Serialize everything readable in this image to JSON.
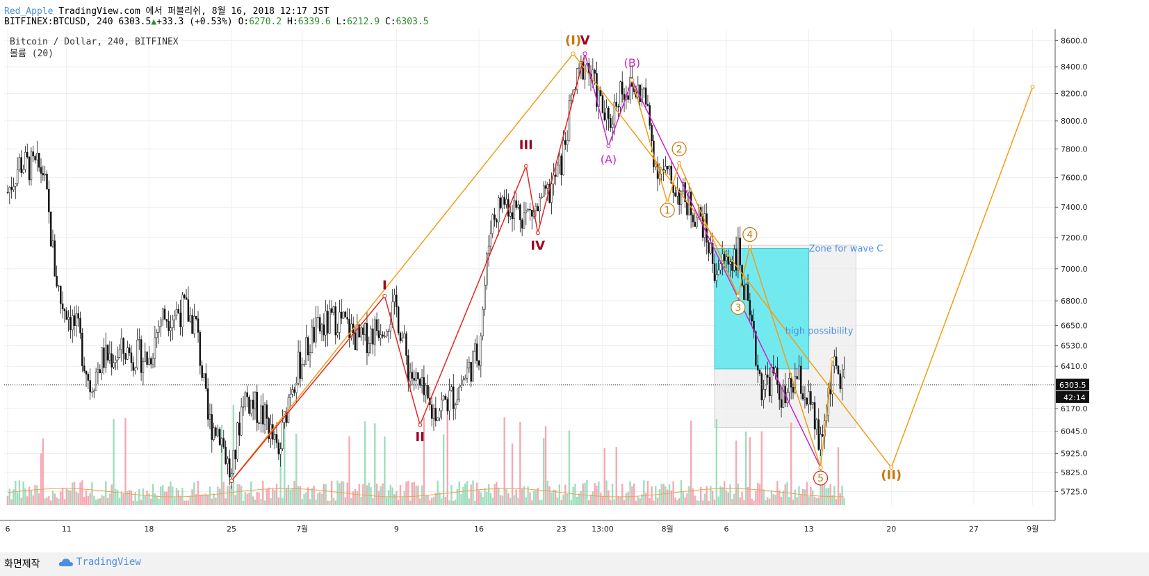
{
  "header": {
    "author": "Red_Apple",
    "published": "TradingView.com 에서 퍼블리쉬, 8월 16, 2018 12:17 JST",
    "symbol": "BITFINEX:BTCUSD, 240",
    "last": "6303.5",
    "change": "+33.3 (+0.53%)",
    "o_label": "O:",
    "o_val": "6270.2",
    "h_label": "H:",
    "h_val": "6339.6",
    "l_label": "L:",
    "l_val": "6212.9",
    "c_label": "C:",
    "c_val": "6303.5"
  },
  "chart_legend": {
    "title": "Bitcoin / Dollar, 240, BITFINEX",
    "indicator": "볼륨 (20)"
  },
  "price_tag": {
    "price": "6303.5",
    "countdown": "42:14"
  },
  "footer": {
    "made_with": "화면제작",
    "brand": "TradingView"
  },
  "colors": {
    "up": "#2e8b2e",
    "down": "#000000",
    "orange": "#f39c12",
    "red": "#e8231c",
    "magenta": "#cc22cc",
    "cyan": "#5ce8ee",
    "zone": "#ebebeb",
    "label_blue": "#4a90e2",
    "dark_red": "#a0001e",
    "wave_orange": "#c8760a"
  },
  "chart_data": {
    "type": "candlestick",
    "title": "Bitcoin / Dollar, 240, BITFINEX",
    "y_axis_ticks": [
      "8600.0",
      "8400.0",
      "8200.0",
      "8000.0",
      "7800.0",
      "7600.0",
      "7400.0",
      "7200.0",
      "7000.0",
      "6800.0",
      "6650.0",
      "6530.0",
      "6410.0",
      "6170.0",
      "6045.0",
      "5925.0",
      "5825.0",
      "5725.0"
    ],
    "x_axis_ticks": [
      "6",
      "11",
      "18",
      "25",
      "7월",
      "9",
      "16",
      "23",
      "13:00",
      "8월",
      "6",
      "13",
      "20",
      "27",
      "9월"
    ],
    "ylim": [
      5655,
      8690
    ],
    "log_scale": true,
    "price_path": [
      [
        "6/6",
        7500
      ],
      [
        "6/7",
        7700
      ],
      [
        "6/9",
        7650
      ],
      [
        "6/10",
        7000
      ],
      [
        "6/10 late",
        6800
      ],
      [
        "6/11",
        6750
      ],
      [
        "6/12",
        6600
      ],
      [
        "6/13",
        6300
      ],
      [
        "6/14",
        6450
      ],
      [
        "6/16",
        6500
      ],
      [
        "6/18",
        6450
      ],
      [
        "6/19",
        6700
      ],
      [
        "6/21",
        6750
      ],
      [
        "6/22",
        6650
      ],
      [
        "6/23",
        6100
      ],
      [
        "6/24",
        6050
      ],
      [
        "6/25",
        5780
      ],
      [
        "6/26",
        6250
      ],
      [
        "6/28",
        6100
      ],
      [
        "6/29",
        5900
      ],
      [
        "6/30",
        6300
      ],
      [
        "7/2",
        6600
      ],
      [
        "7/4",
        6700
      ],
      [
        "7/6",
        6550
      ],
      [
        "7/9",
        6750
      ],
      [
        "7/10",
        6400
      ],
      [
        "7/12",
        6150
      ],
      [
        "7/14",
        6250
      ],
      [
        "7/16",
        6500
      ],
      [
        "7/17",
        7300
      ],
      [
        "7/18",
        7450
      ],
      [
        "7/20",
        7350
      ],
      [
        "7/21",
        7380
      ],
      [
        "7/22",
        7500
      ],
      [
        "7/23",
        7700
      ],
      [
        "7/24",
        8200
      ],
      [
        "7/25",
        8450
      ],
      [
        "7/26",
        8200
      ],
      [
        "7/27",
        7950
      ],
      [
        "7/28",
        8250
      ],
      [
        "7/30",
        8200
      ],
      [
        "7/31",
        7700
      ],
      [
        "8/1",
        7600
      ],
      [
        "8/2",
        7500
      ],
      [
        "8/3",
        7400
      ],
      [
        "8/4",
        7300
      ],
      [
        "8/5",
        7000
      ],
      [
        "8/6",
        7050
      ],
      [
        "8/7",
        7100
      ],
      [
        "8/8",
        6650
      ],
      [
        "8/9",
        6300
      ],
      [
        "8/10",
        6350
      ],
      [
        "8/11",
        6200
      ],
      [
        "8/12",
        6350
      ],
      [
        "8/13",
        6200
      ],
      [
        "8/14",
        5950
      ],
      [
        "8/15",
        6400
      ],
      [
        "8/16",
        6303.5
      ]
    ],
    "series": [
      {
        "name": "",
        "kind": "primary-wave",
        "points": [
          [
            "6/25",
            5780
          ],
          [
            "7/24",
            8500
          ],
          [
            "8/20",
            5850
          ],
          [
            "9/1",
            8250
          ]
        ]
      },
      {
        "name": "",
        "kind": "impulse",
        "points": [
          [
            "6/25",
            5780
          ],
          [
            "7/8",
            6830
          ],
          [
            "7/11",
            6080
          ],
          [
            "7/20",
            7680
          ],
          [
            "7/21",
            7230
          ],
          [
            "7/25",
            8500
          ]
        ]
      },
      {
        "name": "",
        "kind": "abc",
        "points": [
          [
            "7/25",
            8500
          ],
          [
            "7/27",
            7820
          ],
          [
            "7/29",
            8300
          ],
          [
            "8/14",
            5850
          ]
        ]
      },
      {
        "name": "",
        "kind": "sub-wave",
        "points": [
          [
            "7/29",
            8300
          ],
          [
            "8/1",
            7430
          ],
          [
            "8/2",
            7700
          ],
          [
            "8/7",
            6830
          ],
          [
            "8/8",
            7140
          ],
          [
            "8/14",
            5850
          ],
          [
            "8/15",
            6450
          ]
        ]
      }
    ],
    "wave_labels": [
      {
        "text": "I",
        "x": "7/8",
        "y": 6870,
        "style": "red"
      },
      {
        "text": "II",
        "x": "7/11",
        "y": 5990,
        "style": "red"
      },
      {
        "text": "III",
        "x": "7/20",
        "y": 7800,
        "style": "red"
      },
      {
        "text": "IV",
        "x": "7/21",
        "y": 7120,
        "style": "red"
      },
      {
        "text": "V",
        "x": "7/25",
        "y": 8570,
        "style": "red"
      },
      {
        "text": "(I)",
        "x": "7/24",
        "y": 8570,
        "style": "orange"
      },
      {
        "text": "(A)",
        "x": "7/27",
        "y": 7700,
        "style": "magenta"
      },
      {
        "text": "(B)",
        "x": "7/29",
        "y": 8400,
        "style": "magenta"
      },
      {
        "text": "(II)",
        "x": "8/20",
        "y": 5790,
        "style": "orange"
      },
      {
        "text": "1",
        "x": "8/1",
        "y": 7380,
        "style": "circle"
      },
      {
        "text": "2",
        "x": "8/2",
        "y": 7800,
        "style": "circle"
      },
      {
        "text": "3",
        "x": "8/7",
        "y": 6760,
        "style": "circle"
      },
      {
        "text": "4",
        "x": "8/8",
        "y": 7220,
        "style": "circle"
      },
      {
        "text": "5",
        "x": "8/14",
        "y": 5795,
        "style": "circle-red"
      }
    ],
    "annotations": [
      {
        "text": "Zone for wave C",
        "x": "8/13",
        "y": 7110
      },
      {
        "text": "high possibility",
        "x": "8/11",
        "y": 6600
      }
    ],
    "zones": [
      {
        "kind": "grey",
        "x": [
          "8/5",
          "8/17"
        ],
        "y": [
          6065,
          7150
        ]
      },
      {
        "kind": "cyan",
        "x": [
          "8/5",
          "8/13"
        ],
        "y": [
          6395,
          7130
        ]
      }
    ],
    "volume_note": "볼륨 (20)",
    "current_price": 6303.5
  }
}
